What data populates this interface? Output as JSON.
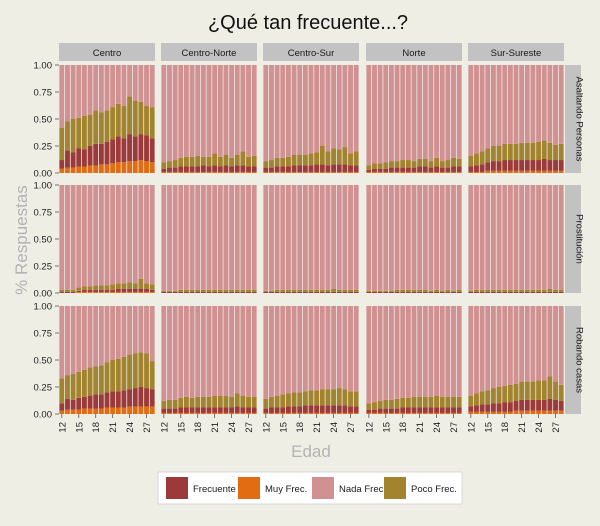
{
  "chart_data": {
    "type": "bar",
    "stacked": true,
    "title": "¿Qué tan frecuente...?",
    "xlabel": "Edad",
    "ylabel": "% Respuestas",
    "ylim": [
      0,
      1
    ],
    "yticks": [
      0.0,
      0.25,
      0.5,
      0.75,
      1.0
    ],
    "ytick_labels": [
      "0.00",
      "0.25",
      "0.50",
      "0.75",
      "1.00"
    ],
    "x": [
      12,
      13,
      14,
      15,
      16,
      17,
      18,
      19,
      20,
      21,
      22,
      23,
      24,
      25,
      26,
      27,
      28
    ],
    "xtick_labels": [
      "12",
      "15",
      "18",
      "21",
      "24",
      "27"
    ],
    "regions": [
      "Centro",
      "Centro-Norte",
      "Centro-Sur",
      "Norte",
      "Sur-Sureste"
    ],
    "questions": [
      "Asaltando Personas",
      "Prostitución",
      "Robando casas"
    ],
    "series_order": [
      "Muy Frec.",
      "Frecuente",
      "Poco Frec.",
      "Nada Frec."
    ],
    "legend": {
      "position": "bottom",
      "entries": [
        "Frecuente",
        "Muy Frec.",
        "Nada Frec.",
        "Poco Frec."
      ]
    },
    "colors": {
      "Frecuente": "#9c3a3a",
      "Muy Frec.": "#e16c12",
      "Nada Frec.": "#d19191",
      "Poco Frec.": "#a2842f"
    },
    "panels": [
      {
        "question": "Asaltando Personas",
        "region": "Centro",
        "muy": [
          0.04,
          0.05,
          0.05,
          0.06,
          0.06,
          0.07,
          0.07,
          0.08,
          0.08,
          0.09,
          0.1,
          0.1,
          0.11,
          0.11,
          0.12,
          0.11,
          0.1
        ],
        "frec": [
          0.08,
          0.16,
          0.14,
          0.17,
          0.16,
          0.18,
          0.2,
          0.19,
          0.21,
          0.22,
          0.24,
          0.22,
          0.25,
          0.23,
          0.24,
          0.24,
          0.22
        ],
        "poco": [
          0.3,
          0.27,
          0.31,
          0.28,
          0.31,
          0.29,
          0.31,
          0.29,
          0.29,
          0.3,
          0.3,
          0.3,
          0.35,
          0.33,
          0.3,
          0.27,
          0.29
        ]
      },
      {
        "question": "Asaltando Personas",
        "region": "Centro-Norte",
        "muy": [
          0.01,
          0.01,
          0.01,
          0.01,
          0.01,
          0.01,
          0.01,
          0.01,
          0.01,
          0.01,
          0.01,
          0.01,
          0.01,
          0.01,
          0.01,
          0.01,
          0.01
        ],
        "frec": [
          0.03,
          0.04,
          0.04,
          0.05,
          0.05,
          0.05,
          0.05,
          0.06,
          0.05,
          0.06,
          0.05,
          0.06,
          0.05,
          0.06,
          0.06,
          0.05,
          0.05
        ],
        "poco": [
          0.06,
          0.06,
          0.07,
          0.08,
          0.09,
          0.09,
          0.1,
          0.08,
          0.09,
          0.11,
          0.09,
          0.1,
          0.08,
          0.1,
          0.13,
          0.09,
          0.1
        ]
      },
      {
        "question": "Asaltando Personas",
        "region": "Centro-Sur",
        "muy": [
          0.01,
          0.01,
          0.01,
          0.01,
          0.01,
          0.01,
          0.01,
          0.01,
          0.01,
          0.01,
          0.01,
          0.01,
          0.01,
          0.01,
          0.01,
          0.01,
          0.01
        ],
        "frec": [
          0.04,
          0.04,
          0.05,
          0.05,
          0.05,
          0.06,
          0.06,
          0.06,
          0.06,
          0.07,
          0.07,
          0.06,
          0.07,
          0.07,
          0.07,
          0.06,
          0.06
        ],
        "poco": [
          0.06,
          0.07,
          0.08,
          0.08,
          0.09,
          0.1,
          0.1,
          0.1,
          0.11,
          0.11,
          0.17,
          0.13,
          0.15,
          0.14,
          0.16,
          0.11,
          0.13
        ]
      },
      {
        "question": "Asaltando Personas",
        "region": "Norte",
        "muy": [
          0.01,
          0.01,
          0.01,
          0.01,
          0.01,
          0.01,
          0.01,
          0.01,
          0.01,
          0.01,
          0.01,
          0.01,
          0.01,
          0.01,
          0.01,
          0.01,
          0.01
        ],
        "frec": [
          0.02,
          0.03,
          0.03,
          0.03,
          0.04,
          0.04,
          0.04,
          0.04,
          0.04,
          0.05,
          0.05,
          0.04,
          0.05,
          0.04,
          0.04,
          0.05,
          0.05
        ],
        "poco": [
          0.04,
          0.05,
          0.05,
          0.06,
          0.06,
          0.06,
          0.07,
          0.07,
          0.06,
          0.07,
          0.07,
          0.06,
          0.08,
          0.06,
          0.07,
          0.08,
          0.07
        ]
      },
      {
        "question": "Asaltando Personas",
        "region": "Sur-Sureste",
        "muy": [
          0.01,
          0.01,
          0.01,
          0.02,
          0.02,
          0.02,
          0.02,
          0.02,
          0.02,
          0.02,
          0.02,
          0.02,
          0.02,
          0.02,
          0.02,
          0.02,
          0.02
        ],
        "frec": [
          0.05,
          0.06,
          0.07,
          0.08,
          0.09,
          0.09,
          0.1,
          0.1,
          0.1,
          0.1,
          0.1,
          0.1,
          0.1,
          0.11,
          0.1,
          0.1,
          0.1
        ],
        "poco": [
          0.1,
          0.11,
          0.12,
          0.13,
          0.14,
          0.14,
          0.15,
          0.15,
          0.15,
          0.16,
          0.16,
          0.16,
          0.17,
          0.17,
          0.16,
          0.14,
          0.15
        ]
      },
      {
        "question": "Prostitución",
        "region": "Centro",
        "muy": [
          0.0,
          0.0,
          0.0,
          0.01,
          0.01,
          0.01,
          0.01,
          0.01,
          0.01,
          0.01,
          0.01,
          0.01,
          0.01,
          0.01,
          0.01,
          0.01,
          0.01
        ],
        "frec": [
          0.01,
          0.01,
          0.01,
          0.01,
          0.02,
          0.02,
          0.02,
          0.02,
          0.02,
          0.02,
          0.03,
          0.03,
          0.03,
          0.03,
          0.03,
          0.03,
          0.02
        ],
        "poco": [
          0.02,
          0.02,
          0.02,
          0.03,
          0.03,
          0.03,
          0.04,
          0.04,
          0.04,
          0.05,
          0.05,
          0.05,
          0.06,
          0.05,
          0.09,
          0.05,
          0.05
        ]
      },
      {
        "question": "Prostitución",
        "region": "Centro-Norte",
        "muy": [
          0.0,
          0.0,
          0.0,
          0.0,
          0.0,
          0.0,
          0.0,
          0.0,
          0.0,
          0.0,
          0.0,
          0.0,
          0.0,
          0.0,
          0.0,
          0.0,
          0.0
        ],
        "frec": [
          0.01,
          0.01,
          0.01,
          0.01,
          0.01,
          0.01,
          0.01,
          0.01,
          0.01,
          0.01,
          0.01,
          0.01,
          0.01,
          0.01,
          0.01,
          0.01,
          0.01
        ],
        "poco": [
          0.01,
          0.01,
          0.01,
          0.02,
          0.02,
          0.02,
          0.02,
          0.02,
          0.02,
          0.02,
          0.02,
          0.02,
          0.02,
          0.02,
          0.02,
          0.02,
          0.02
        ]
      },
      {
        "question": "Prostitución",
        "region": "Centro-Sur",
        "muy": [
          0.0,
          0.0,
          0.0,
          0.0,
          0.0,
          0.0,
          0.0,
          0.0,
          0.0,
          0.0,
          0.0,
          0.0,
          0.0,
          0.0,
          0.0,
          0.0,
          0.0
        ],
        "frec": [
          0.01,
          0.01,
          0.01,
          0.01,
          0.01,
          0.01,
          0.01,
          0.01,
          0.01,
          0.01,
          0.01,
          0.01,
          0.01,
          0.01,
          0.01,
          0.01,
          0.01
        ],
        "poco": [
          0.01,
          0.01,
          0.02,
          0.02,
          0.02,
          0.02,
          0.02,
          0.02,
          0.02,
          0.02,
          0.02,
          0.02,
          0.03,
          0.02,
          0.02,
          0.02,
          0.02
        ]
      },
      {
        "question": "Prostitución",
        "region": "Norte",
        "muy": [
          0.0,
          0.0,
          0.0,
          0.0,
          0.0,
          0.0,
          0.0,
          0.0,
          0.0,
          0.0,
          0.0,
          0.0,
          0.0,
          0.0,
          0.0,
          0.0,
          0.0
        ],
        "frec": [
          0.01,
          0.01,
          0.01,
          0.01,
          0.01,
          0.01,
          0.01,
          0.01,
          0.01,
          0.01,
          0.01,
          0.01,
          0.01,
          0.01,
          0.01,
          0.01,
          0.01
        ],
        "poco": [
          0.01,
          0.01,
          0.01,
          0.01,
          0.01,
          0.02,
          0.02,
          0.02,
          0.02,
          0.02,
          0.02,
          0.01,
          0.02,
          0.01,
          0.02,
          0.01,
          0.02
        ]
      },
      {
        "question": "Prostitución",
        "region": "Sur-Sureste",
        "muy": [
          0.0,
          0.0,
          0.0,
          0.0,
          0.0,
          0.0,
          0.0,
          0.0,
          0.0,
          0.0,
          0.0,
          0.0,
          0.0,
          0.0,
          0.0,
          0.0,
          0.0
        ],
        "frec": [
          0.01,
          0.01,
          0.01,
          0.01,
          0.01,
          0.01,
          0.01,
          0.01,
          0.01,
          0.01,
          0.01,
          0.01,
          0.01,
          0.01,
          0.01,
          0.01,
          0.01
        ],
        "poco": [
          0.01,
          0.02,
          0.02,
          0.02,
          0.02,
          0.02,
          0.02,
          0.02,
          0.02,
          0.02,
          0.02,
          0.02,
          0.02,
          0.02,
          0.03,
          0.02,
          0.02
        ]
      },
      {
        "question": "Robando casas",
        "region": "Centro",
        "muy": [
          0.03,
          0.04,
          0.04,
          0.04,
          0.05,
          0.05,
          0.05,
          0.05,
          0.06,
          0.06,
          0.06,
          0.06,
          0.07,
          0.07,
          0.07,
          0.07,
          0.07
        ],
        "frec": [
          0.07,
          0.1,
          0.09,
          0.11,
          0.11,
          0.12,
          0.13,
          0.13,
          0.14,
          0.15,
          0.15,
          0.16,
          0.16,
          0.17,
          0.18,
          0.17,
          0.16
        ],
        "poco": [
          0.23,
          0.22,
          0.24,
          0.24,
          0.25,
          0.26,
          0.26,
          0.27,
          0.28,
          0.29,
          0.3,
          0.31,
          0.32,
          0.32,
          0.32,
          0.32,
          0.26
        ]
      },
      {
        "question": "Robando casas",
        "region": "Centro-Norte",
        "muy": [
          0.01,
          0.01,
          0.01,
          0.01,
          0.01,
          0.01,
          0.01,
          0.01,
          0.01,
          0.01,
          0.01,
          0.01,
          0.01,
          0.01,
          0.01,
          0.01,
          0.01
        ],
        "frec": [
          0.04,
          0.04,
          0.04,
          0.05,
          0.05,
          0.05,
          0.05,
          0.05,
          0.05,
          0.05,
          0.05,
          0.05,
          0.05,
          0.06,
          0.05,
          0.05,
          0.05
        ],
        "poco": [
          0.07,
          0.08,
          0.08,
          0.09,
          0.1,
          0.09,
          0.1,
          0.1,
          0.1,
          0.11,
          0.11,
          0.11,
          0.1,
          0.12,
          0.11,
          0.1,
          0.1
        ]
      },
      {
        "question": "Robando casas",
        "region": "Centro-Sur",
        "muy": [
          0.01,
          0.01,
          0.01,
          0.01,
          0.01,
          0.01,
          0.01,
          0.01,
          0.01,
          0.01,
          0.01,
          0.01,
          0.01,
          0.01,
          0.01,
          0.01,
          0.01
        ],
        "frec": [
          0.04,
          0.05,
          0.05,
          0.05,
          0.06,
          0.06,
          0.06,
          0.07,
          0.07,
          0.07,
          0.07,
          0.07,
          0.07,
          0.07,
          0.07,
          0.06,
          0.06
        ],
        "poco": [
          0.09,
          0.1,
          0.11,
          0.12,
          0.12,
          0.13,
          0.13,
          0.13,
          0.14,
          0.14,
          0.15,
          0.15,
          0.15,
          0.16,
          0.15,
          0.14,
          0.14
        ]
      },
      {
        "question": "Robando casas",
        "region": "Norte",
        "muy": [
          0.01,
          0.01,
          0.01,
          0.01,
          0.01,
          0.01,
          0.01,
          0.01,
          0.01,
          0.01,
          0.01,
          0.01,
          0.01,
          0.01,
          0.01,
          0.01,
          0.01
        ],
        "frec": [
          0.03,
          0.03,
          0.04,
          0.04,
          0.04,
          0.04,
          0.05,
          0.05,
          0.05,
          0.05,
          0.05,
          0.05,
          0.05,
          0.05,
          0.05,
          0.05,
          0.05
        ],
        "poco": [
          0.06,
          0.07,
          0.07,
          0.08,
          0.08,
          0.09,
          0.09,
          0.09,
          0.1,
          0.1,
          0.1,
          0.1,
          0.11,
          0.1,
          0.1,
          0.1,
          0.1
        ]
      },
      {
        "question": "Robando casas",
        "region": "Sur-Sureste",
        "muy": [
          0.02,
          0.02,
          0.02,
          0.02,
          0.02,
          0.02,
          0.02,
          0.02,
          0.03,
          0.03,
          0.03,
          0.03,
          0.03,
          0.03,
          0.03,
          0.03,
          0.03
        ],
        "frec": [
          0.05,
          0.06,
          0.07,
          0.07,
          0.08,
          0.08,
          0.09,
          0.09,
          0.09,
          0.1,
          0.1,
          0.1,
          0.1,
          0.1,
          0.11,
          0.1,
          0.09
        ],
        "poco": [
          0.1,
          0.11,
          0.12,
          0.13,
          0.14,
          0.15,
          0.15,
          0.16,
          0.16,
          0.17,
          0.17,
          0.17,
          0.18,
          0.18,
          0.21,
          0.17,
          0.15
        ]
      }
    ]
  }
}
